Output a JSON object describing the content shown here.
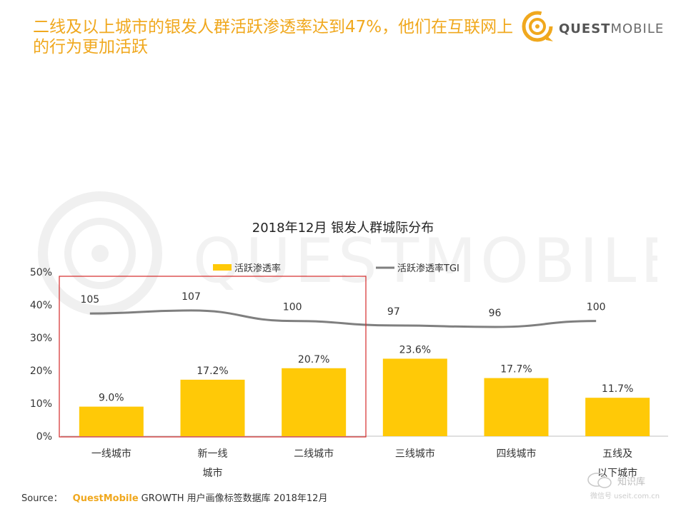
{
  "headline": "二线及以上城市的银发人群活跃渗透率达到47%，他们在互联网上的行为更加活跃",
  "brand": {
    "bold": "QUEST",
    "light": "MOBILE"
  },
  "watermark_text": "QUESTMOBILE",
  "colors": {
    "accent": "#f0a81e",
    "bar": "#ffc907",
    "line": "#7f7f7f",
    "highlight_box": "#d42a2a"
  },
  "chart_data": {
    "type": "bar",
    "title": "2018年12月 银发人群城际分布",
    "categories": [
      "一线城市",
      "新一线城市",
      "二线城市",
      "三线城市",
      "四线城市",
      "五线及以下城市"
    ],
    "category_lines": [
      [
        "一线城市"
      ],
      [
        "新一线",
        "城市"
      ],
      [
        "二线城市"
      ],
      [
        "三线城市"
      ],
      [
        "四线城市"
      ],
      [
        "五线及",
        "以下城市"
      ]
    ],
    "series": [
      {
        "name": "活跃渗透率",
        "type": "bar",
        "values": [
          9.0,
          17.2,
          20.7,
          23.6,
          17.7,
          11.7
        ],
        "labels": [
          "9.0%",
          "17.2%",
          "20.7%",
          "23.6%",
          "17.7%",
          "11.7%"
        ]
      },
      {
        "name": "活跃渗透率TGI",
        "type": "line",
        "values": [
          105,
          107,
          100,
          97,
          96,
          100
        ],
        "labels": [
          "105",
          "107",
          "100",
          "97",
          "96",
          "100"
        ]
      }
    ],
    "yticks": [
      "0%",
      "10%",
      "20%",
      "30%",
      "40%",
      "50%"
    ],
    "ylim": [
      0,
      50
    ],
    "legend_position": "top",
    "highlight": "一线城市 to 二线城市"
  },
  "source": {
    "label": "Source：",
    "brand": "QuestMobile",
    "text": "GROWTH 用户画像标签数据库 2018年12月"
  },
  "wechat": {
    "name": "知识库",
    "id": "微信号 useit.com.cn"
  }
}
